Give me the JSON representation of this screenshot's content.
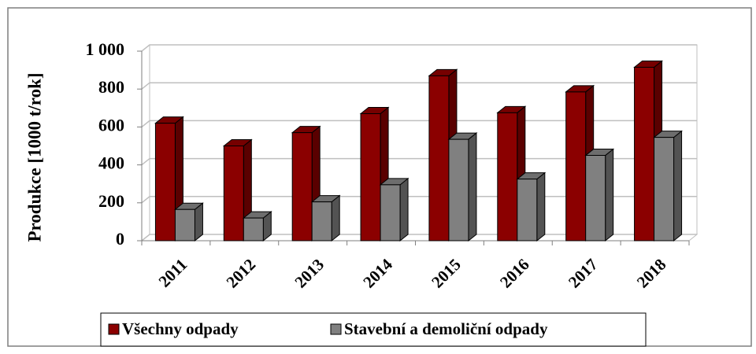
{
  "chart_data": {
    "type": "bar3d",
    "y_label": "Produkce  [1000 t/rok]",
    "categories": [
      "2011",
      "2012",
      "2013",
      "2014",
      "2015",
      "2016",
      "2017",
      "2018"
    ],
    "series": [
      {
        "name": "Všechny odpady",
        "color": "#8b0000",
        "values": [
          620,
          500,
          570,
          670,
          870,
          675,
          785,
          915
        ]
      },
      {
        "name": "Stavební a demoliční odpady",
        "color": "#808080",
        "values": [
          165,
          120,
          205,
          295,
          535,
          325,
          450,
          545
        ]
      }
    ],
    "ylim": [
      0,
      1000
    ],
    "yticks": [
      0,
      200,
      400,
      600,
      800,
      {
        "value": 1000,
        "label": "1 000"
      }
    ],
    "grid": true
  }
}
